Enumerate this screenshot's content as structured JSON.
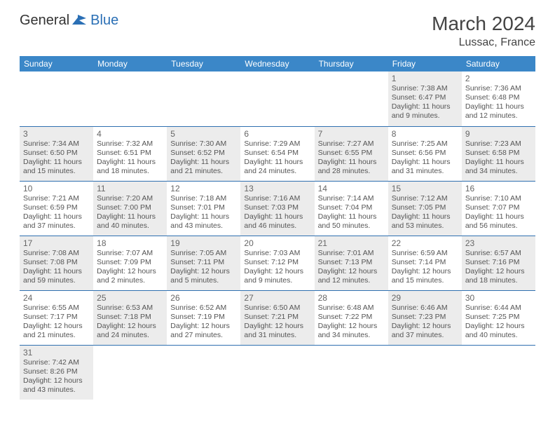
{
  "logo": {
    "general": "General",
    "blue": "Blue"
  },
  "title": "March 2024",
  "location": "Lussac, France",
  "header_color": "#3b87c8",
  "row_divider_color": "#2f70b0",
  "shaded_bg": "#ececec",
  "weekdays": [
    "Sunday",
    "Monday",
    "Tuesday",
    "Wednesday",
    "Thursday",
    "Friday",
    "Saturday"
  ],
  "weeks": [
    [
      null,
      null,
      null,
      null,
      null,
      {
        "n": "1",
        "sr": "Sunrise: 7:38 AM",
        "ss": "Sunset: 6:47 PM",
        "d1": "Daylight: 11 hours",
        "d2": "and 9 minutes."
      },
      {
        "n": "2",
        "sr": "Sunrise: 7:36 AM",
        "ss": "Sunset: 6:48 PM",
        "d1": "Daylight: 11 hours",
        "d2": "and 12 minutes."
      }
    ],
    [
      {
        "n": "3",
        "sr": "Sunrise: 7:34 AM",
        "ss": "Sunset: 6:50 PM",
        "d1": "Daylight: 11 hours",
        "d2": "and 15 minutes."
      },
      {
        "n": "4",
        "sr": "Sunrise: 7:32 AM",
        "ss": "Sunset: 6:51 PM",
        "d1": "Daylight: 11 hours",
        "d2": "and 18 minutes."
      },
      {
        "n": "5",
        "sr": "Sunrise: 7:30 AM",
        "ss": "Sunset: 6:52 PM",
        "d1": "Daylight: 11 hours",
        "d2": "and 21 minutes."
      },
      {
        "n": "6",
        "sr": "Sunrise: 7:29 AM",
        "ss": "Sunset: 6:54 PM",
        "d1": "Daylight: 11 hours",
        "d2": "and 24 minutes."
      },
      {
        "n": "7",
        "sr": "Sunrise: 7:27 AM",
        "ss": "Sunset: 6:55 PM",
        "d1": "Daylight: 11 hours",
        "d2": "and 28 minutes."
      },
      {
        "n": "8",
        "sr": "Sunrise: 7:25 AM",
        "ss": "Sunset: 6:56 PM",
        "d1": "Daylight: 11 hours",
        "d2": "and 31 minutes."
      },
      {
        "n": "9",
        "sr": "Sunrise: 7:23 AM",
        "ss": "Sunset: 6:58 PM",
        "d1": "Daylight: 11 hours",
        "d2": "and 34 minutes."
      }
    ],
    [
      {
        "n": "10",
        "sr": "Sunrise: 7:21 AM",
        "ss": "Sunset: 6:59 PM",
        "d1": "Daylight: 11 hours",
        "d2": "and 37 minutes."
      },
      {
        "n": "11",
        "sr": "Sunrise: 7:20 AM",
        "ss": "Sunset: 7:00 PM",
        "d1": "Daylight: 11 hours",
        "d2": "and 40 minutes."
      },
      {
        "n": "12",
        "sr": "Sunrise: 7:18 AM",
        "ss": "Sunset: 7:01 PM",
        "d1": "Daylight: 11 hours",
        "d2": "and 43 minutes."
      },
      {
        "n": "13",
        "sr": "Sunrise: 7:16 AM",
        "ss": "Sunset: 7:03 PM",
        "d1": "Daylight: 11 hours",
        "d2": "and 46 minutes."
      },
      {
        "n": "14",
        "sr": "Sunrise: 7:14 AM",
        "ss": "Sunset: 7:04 PM",
        "d1": "Daylight: 11 hours",
        "d2": "and 50 minutes."
      },
      {
        "n": "15",
        "sr": "Sunrise: 7:12 AM",
        "ss": "Sunset: 7:05 PM",
        "d1": "Daylight: 11 hours",
        "d2": "and 53 minutes."
      },
      {
        "n": "16",
        "sr": "Sunrise: 7:10 AM",
        "ss": "Sunset: 7:07 PM",
        "d1": "Daylight: 11 hours",
        "d2": "and 56 minutes."
      }
    ],
    [
      {
        "n": "17",
        "sr": "Sunrise: 7:08 AM",
        "ss": "Sunset: 7:08 PM",
        "d1": "Daylight: 11 hours",
        "d2": "and 59 minutes."
      },
      {
        "n": "18",
        "sr": "Sunrise: 7:07 AM",
        "ss": "Sunset: 7:09 PM",
        "d1": "Daylight: 12 hours",
        "d2": "and 2 minutes."
      },
      {
        "n": "19",
        "sr": "Sunrise: 7:05 AM",
        "ss": "Sunset: 7:11 PM",
        "d1": "Daylight: 12 hours",
        "d2": "and 5 minutes."
      },
      {
        "n": "20",
        "sr": "Sunrise: 7:03 AM",
        "ss": "Sunset: 7:12 PM",
        "d1": "Daylight: 12 hours",
        "d2": "and 9 minutes."
      },
      {
        "n": "21",
        "sr": "Sunrise: 7:01 AM",
        "ss": "Sunset: 7:13 PM",
        "d1": "Daylight: 12 hours",
        "d2": "and 12 minutes."
      },
      {
        "n": "22",
        "sr": "Sunrise: 6:59 AM",
        "ss": "Sunset: 7:14 PM",
        "d1": "Daylight: 12 hours",
        "d2": "and 15 minutes."
      },
      {
        "n": "23",
        "sr": "Sunrise: 6:57 AM",
        "ss": "Sunset: 7:16 PM",
        "d1": "Daylight: 12 hours",
        "d2": "and 18 minutes."
      }
    ],
    [
      {
        "n": "24",
        "sr": "Sunrise: 6:55 AM",
        "ss": "Sunset: 7:17 PM",
        "d1": "Daylight: 12 hours",
        "d2": "and 21 minutes."
      },
      {
        "n": "25",
        "sr": "Sunrise: 6:53 AM",
        "ss": "Sunset: 7:18 PM",
        "d1": "Daylight: 12 hours",
        "d2": "and 24 minutes."
      },
      {
        "n": "26",
        "sr": "Sunrise: 6:52 AM",
        "ss": "Sunset: 7:19 PM",
        "d1": "Daylight: 12 hours",
        "d2": "and 27 minutes."
      },
      {
        "n": "27",
        "sr": "Sunrise: 6:50 AM",
        "ss": "Sunset: 7:21 PM",
        "d1": "Daylight: 12 hours",
        "d2": "and 31 minutes."
      },
      {
        "n": "28",
        "sr": "Sunrise: 6:48 AM",
        "ss": "Sunset: 7:22 PM",
        "d1": "Daylight: 12 hours",
        "d2": "and 34 minutes."
      },
      {
        "n": "29",
        "sr": "Sunrise: 6:46 AM",
        "ss": "Sunset: 7:23 PM",
        "d1": "Daylight: 12 hours",
        "d2": "and 37 minutes."
      },
      {
        "n": "30",
        "sr": "Sunrise: 6:44 AM",
        "ss": "Sunset: 7:25 PM",
        "d1": "Daylight: 12 hours",
        "d2": "and 40 minutes."
      }
    ],
    [
      {
        "n": "31",
        "sr": "Sunrise: 7:42 AM",
        "ss": "Sunset: 8:26 PM",
        "d1": "Daylight: 12 hours",
        "d2": "and 43 minutes."
      },
      null,
      null,
      null,
      null,
      null,
      null
    ]
  ]
}
